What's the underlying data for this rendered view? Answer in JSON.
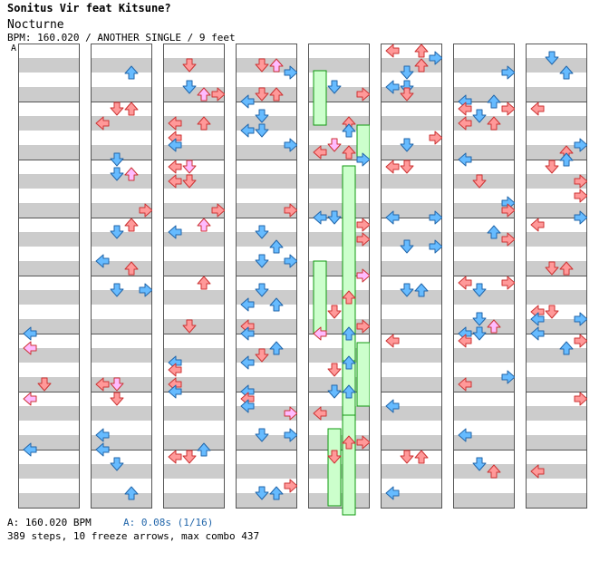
{
  "header": {
    "title": "Sonitus Vir feat Kitsune?",
    "song": "Nocturne",
    "info": "BPM: 160.020 / ANOTHER SINGLE / 9 feet"
  },
  "chart": {
    "marker": "A",
    "num_columns": 8,
    "measures_per_column": 8,
    "beats_per_measure": 4,
    "colors": {
      "stripe": "#cccccc",
      "border": "#555555",
      "arrow_red": "#ff9999",
      "arrow_blue": "#66bbff",
      "arrow_pink": "#ffbbff",
      "arrow_green": "#55ee55",
      "freeze_fill": "#ccffcc",
      "freeze_border": "#119911"
    },
    "icons": [
      "left-arrow-icon",
      "down-arrow-icon",
      "up-arrow-icon",
      "right-arrow-icon",
      "freeze-arrow-icon"
    ]
  },
  "footer": {
    "bpm_line": "A: 160.020 BPM",
    "offset_line": "A: 0.08s (1/16)",
    "stats": "389 steps, 10 freeze arrows, max combo 437"
  }
}
